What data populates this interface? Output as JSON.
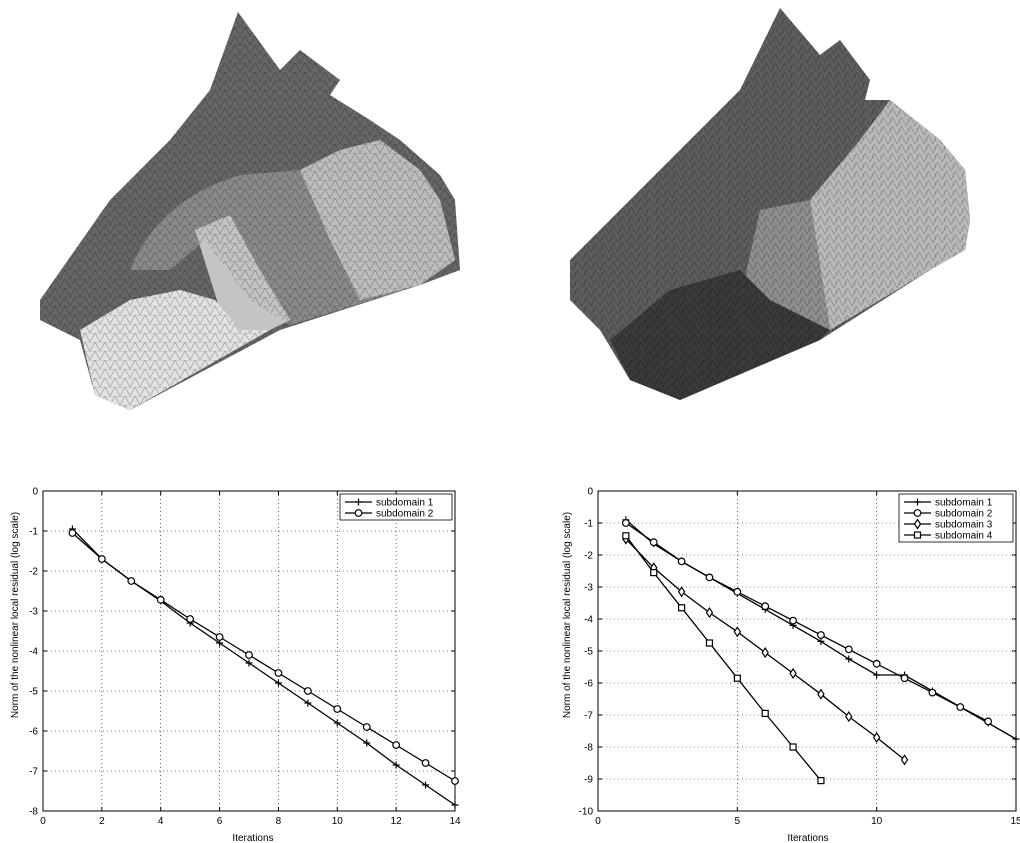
{
  "chart_data": [
    {
      "type": "line",
      "xlabel": "Iterations",
      "ylabel": "Norm of the nonlinear local residual (log scale)",
      "xlim": [
        0,
        14
      ],
      "ylim": [
        -8,
        0
      ],
      "xticks": [
        0,
        2,
        4,
        6,
        8,
        10,
        12,
        14
      ],
      "yticks": [
        0,
        -1,
        -2,
        -3,
        -4,
        -5,
        -6,
        -7,
        -8
      ],
      "grid": true,
      "legend_position": "top-right",
      "series": [
        {
          "name": "subdomain 1",
          "marker": "plus",
          "x": [
            1,
            2,
            3,
            4,
            5,
            6,
            7,
            8,
            9,
            10,
            11,
            12,
            13,
            14
          ],
          "y": [
            -0.95,
            -1.7,
            -2.25,
            -2.75,
            -3.3,
            -3.8,
            -4.3,
            -4.8,
            -5.3,
            -5.8,
            -6.3,
            -6.85,
            -7.35,
            -7.85
          ]
        },
        {
          "name": "subdomain 2",
          "marker": "circle",
          "x": [
            1,
            2,
            3,
            4,
            5,
            6,
            7,
            8,
            9,
            10,
            11,
            12,
            13,
            14
          ],
          "y": [
            -1.05,
            -1.7,
            -2.25,
            -2.72,
            -3.2,
            -3.65,
            -4.1,
            -4.55,
            -5.0,
            -5.45,
            -5.9,
            -6.35,
            -6.8,
            -7.25
          ]
        }
      ]
    },
    {
      "type": "line",
      "xlabel": "Iterations",
      "ylabel": "Norm of the nonlinear local residual (log scale)",
      "xlim": [
        0,
        15
      ],
      "ylim": [
        -10,
        0
      ],
      "xticks": [
        0,
        5,
        10,
        15
      ],
      "yticks": [
        0,
        -1,
        -2,
        -3,
        -4,
        -5,
        -6,
        -7,
        -8,
        -9,
        -10
      ],
      "grid": true,
      "legend_position": "top-right",
      "series": [
        {
          "name": "subdomain 1",
          "marker": "plus",
          "x": [
            1,
            2,
            3,
            4,
            5,
            6,
            7,
            8,
            9,
            10,
            11,
            12,
            13,
            14,
            15
          ],
          "y": [
            -0.9,
            -1.65,
            -2.2,
            -2.7,
            -3.2,
            -3.7,
            -4.2,
            -4.7,
            -5.25,
            -5.75,
            -5.75,
            -6.25,
            -6.75,
            -7.25,
            -7.75
          ]
        },
        {
          "name": "subdomain 2",
          "marker": "circle",
          "x": [
            1,
            2,
            3,
            4,
            5,
            6,
            7,
            8,
            9,
            10,
            11,
            12,
            13,
            14
          ],
          "y": [
            -1.0,
            -1.6,
            -2.2,
            -2.7,
            -3.15,
            -3.6,
            -4.05,
            -4.5,
            -4.95,
            -5.4,
            -5.85,
            -6.3,
            -6.75,
            -7.2
          ]
        },
        {
          "name": "subdomain 3",
          "marker": "diamond",
          "x": [
            1,
            2,
            3,
            4,
            5,
            6,
            7,
            8,
            9,
            10,
            11
          ],
          "y": [
            -1.5,
            -2.4,
            -3.15,
            -3.8,
            -4.4,
            -5.05,
            -5.7,
            -6.35,
            -7.05,
            -7.7,
            -8.4
          ]
        },
        {
          "name": "subdomain 4",
          "marker": "square",
          "x": [
            1,
            2,
            3,
            4,
            5,
            6,
            7,
            8
          ],
          "y": [
            -1.4,
            -2.55,
            -3.65,
            -4.75,
            -5.85,
            -6.95,
            -8.0,
            -9.05
          ]
        }
      ]
    }
  ],
  "images": [
    {
      "name": "mesh-solid-two-subdomains",
      "description_icon": "mesh-3d-icon",
      "colors": {
        "dark": "#5a5a5a",
        "mid": "#8c8c8c",
        "light": "#d4d4d4"
      }
    },
    {
      "name": "mesh-solid-four-subdomains",
      "description_icon": "mesh-3d-icon",
      "colors": {
        "dark": "#3a3a3a",
        "mid": "#6e6e6e",
        "light": "#c8c8c8"
      }
    }
  ]
}
